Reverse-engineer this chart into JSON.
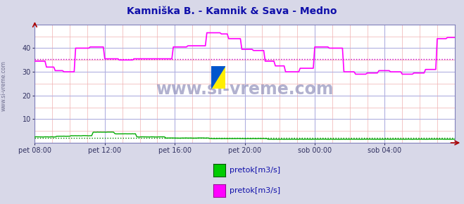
{
  "title": "Kamniška B. - Kamnik & Sava - Medno",
  "title_color": "#1010aa",
  "bg_color": "#d8d8e8",
  "plot_bg_color": "#ffffff",
  "grid_color_major": "#b0b0e0",
  "grid_color_minor": "#f0b0b0",
  "xlim": [
    0,
    288
  ],
  "ylim": [
    0,
    50
  ],
  "yticks": [
    10,
    20,
    30,
    40
  ],
  "xtick_labels": [
    "pet 08:00",
    "pet 12:00",
    "pet 16:00",
    "pet 20:00",
    "sob 00:00",
    "sob 04:00"
  ],
  "xtick_positions": [
    0,
    48,
    96,
    144,
    192,
    240
  ],
  "avg_line1": 2.0,
  "avg_line2": 35.5,
  "line1_color": "#00aa00",
  "line2_color": "#ff00ff",
  "avg_line1_color": "#008800",
  "avg_line2_color": "#cc00cc",
  "watermark": "www.si-vreme.com",
  "legend1_label": "pretok[m3/s]",
  "legend2_label": "pretok[m3/s]",
  "legend1_color": "#00cc00",
  "legend2_color": "#ff00ff",
  "side_text": "www.si-vreme.com"
}
